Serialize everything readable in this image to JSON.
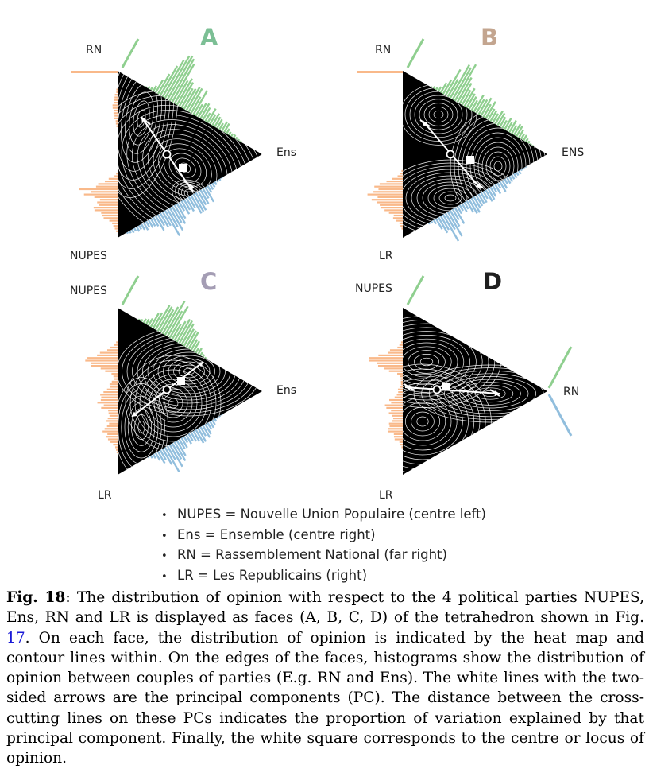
{
  "faces": [
    {
      "letter": "A",
      "color": "#7cbf95",
      "labels": {
        "top": "RN",
        "right": "Ens",
        "bottom": "NUPES"
      }
    },
    {
      "letter": "B",
      "color": "#c3a58f",
      "labels": {
        "top": "RN",
        "right": "ENS",
        "bottom": "LR"
      }
    },
    {
      "letter": "C",
      "color": "#a49db4",
      "labels": {
        "top": "NUPES",
        "right": "Ens",
        "bottom": "LR"
      }
    },
    {
      "letter": "D",
      "color": "#1f1f1f",
      "labels": {
        "top": "NUPES",
        "right": "RN",
        "bottom": "LR"
      }
    }
  ],
  "histogram_colors": {
    "orange": "#f9b98a",
    "green": "#8fcf8f",
    "blue": "#91bedd"
  },
  "legend": [
    "NUPES = Nouvelle Union Populaire (centre left)",
    "Ens = Ensemble (centre right)",
    "RN = Rassemblement National (far right)",
    "LR = Les Republicains (right)"
  ],
  "legend_bullet": "•",
  "caption": {
    "label": "Fig. 18",
    "text_1": ": The distribution of opinion with respect to the 4 political parties NUPES, Ens, RN and LR is displayed as faces (A, B, C, D) of the tetrahedron shown in Fig. ",
    "ref": "17",
    "text_2": ". On each face, the distribution of opinion is indicated by the heat map and contour lines within. On the edges of the faces, histograms show the distribution of opinion between couples of parties (E.g. RN and Ens). The white lines with the two-sided arrows are the principal components (PC). The distance between the cross-cutting lines on these PCs indicates the proportion of variation explained by that principal component. Finally, the white square corresponds to the centre or locus of opinion."
  }
}
